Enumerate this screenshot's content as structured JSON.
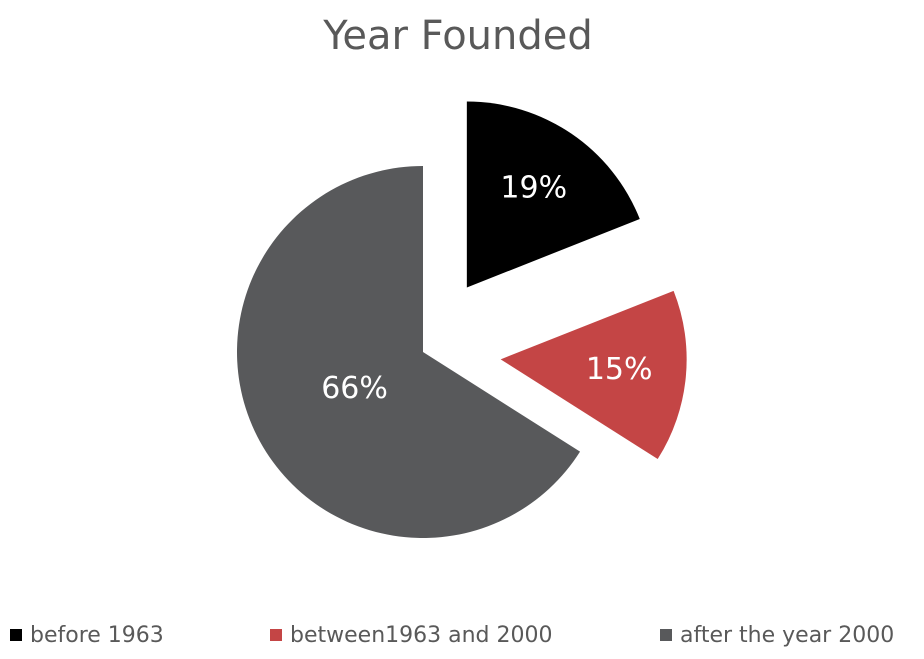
{
  "chart_data": {
    "type": "pie",
    "title": "Year Founded",
    "categories": [
      "before 1963",
      "between1963 and 2000",
      "after the year 2000"
    ],
    "values": [
      19,
      15,
      66
    ],
    "value_labels": [
      "19%",
      "15%",
      "66%"
    ],
    "colors": [
      "#000000",
      "#c44545",
      "#58595b"
    ],
    "explode": [
      true,
      true,
      false
    ],
    "legend": "bottom"
  }
}
